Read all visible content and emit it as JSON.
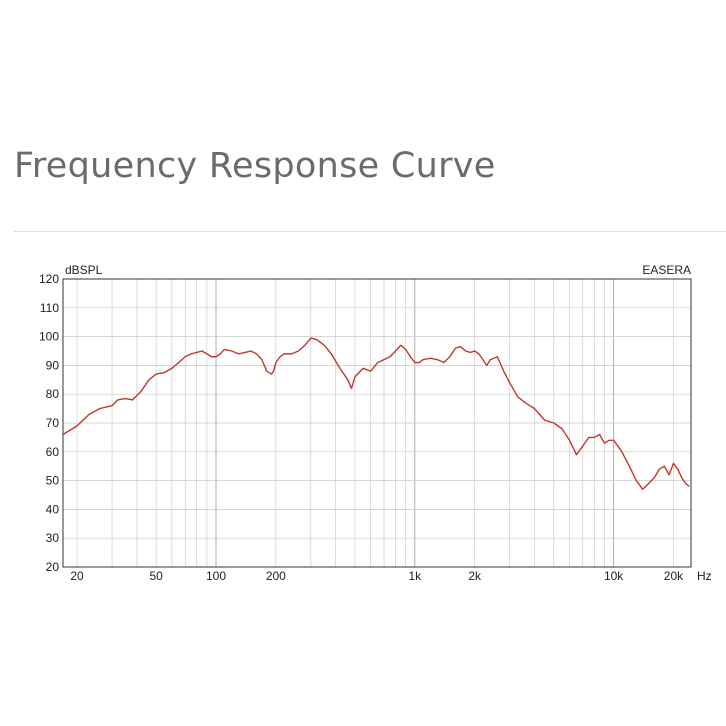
{
  "page": {
    "title": "Frequency Response Curve"
  },
  "chart_data": {
    "type": "line",
    "title": "",
    "ylabel": "dBSPL",
    "xunit": "Hz",
    "watermark": "EASERA",
    "xscale": "log",
    "xlim": [
      17,
      24500
    ],
    "ylim": [
      20,
      120
    ],
    "grid": true,
    "line_color": "#c0392b",
    "yticks": [
      20,
      30,
      40,
      50,
      60,
      70,
      80,
      90,
      100,
      110,
      120
    ],
    "xticks": [
      {
        "value": 20,
        "label": "20"
      },
      {
        "value": 50,
        "label": "50"
      },
      {
        "value": 100,
        "label": "100"
      },
      {
        "value": 200,
        "label": "200"
      },
      {
        "value": 1000,
        "label": "1k"
      },
      {
        "value": 2000,
        "label": "2k"
      },
      {
        "value": 10000,
        "label": "10k"
      },
      {
        "value": 20000,
        "label": "20k"
      }
    ],
    "series": [
      {
        "x": [
          17,
          20,
          23,
          26,
          30,
          32,
          35,
          38,
          42,
          46,
          50,
          55,
          60,
          65,
          70,
          75,
          80,
          85,
          90,
          95,
          100,
          105,
          110,
          120,
          130,
          140,
          150,
          160,
          170,
          180,
          190,
          195,
          200,
          210,
          220,
          240,
          260,
          280,
          300,
          320,
          350,
          380,
          420,
          460,
          480,
          500,
          550,
          600,
          650,
          700,
          750,
          800,
          850,
          900,
          950,
          1000,
          1050,
          1100,
          1200,
          1300,
          1400,
          1500,
          1600,
          1700,
          1800,
          1900,
          2000,
          2100,
          2200,
          2300,
          2400,
          2600,
          2800,
          3000,
          3300,
          3600,
          4000,
          4500,
          5000,
          5500,
          6000,
          6500,
          7000,
          7500,
          8000,
          8500,
          9000,
          9500,
          10000,
          10500,
          11000,
          12000,
          13000,
          14000,
          15000,
          16000,
          17000,
          18000,
          19000,
          20000,
          21000,
          22000,
          23000,
          24000
        ],
        "y": [
          66,
          69,
          73,
          75,
          76,
          78,
          78.5,
          78,
          81,
          85,
          87,
          87.5,
          89,
          91,
          93,
          94,
          94.5,
          95,
          94,
          93,
          93,
          94,
          95.5,
          95,
          94,
          94.5,
          95,
          94,
          92,
          88,
          87,
          88,
          91,
          93,
          94,
          94,
          95,
          97,
          99.5,
          99,
          97,
          94,
          89,
          85,
          82,
          86,
          89,
          88,
          91,
          92,
          93,
          95,
          97,
          95.5,
          93,
          91,
          91,
          92,
          92.5,
          92,
          91,
          93,
          96,
          96.5,
          95,
          94.5,
          95,
          94,
          92,
          90,
          92,
          93,
          88,
          84,
          79,
          77,
          75,
          71,
          70,
          68,
          64,
          59,
          62,
          65,
          65,
          66,
          63,
          64,
          64,
          62,
          60,
          55,
          50,
          47,
          49,
          51,
          54,
          55,
          52,
          56,
          54,
          51,
          49,
          48
        ]
      }
    ]
  }
}
